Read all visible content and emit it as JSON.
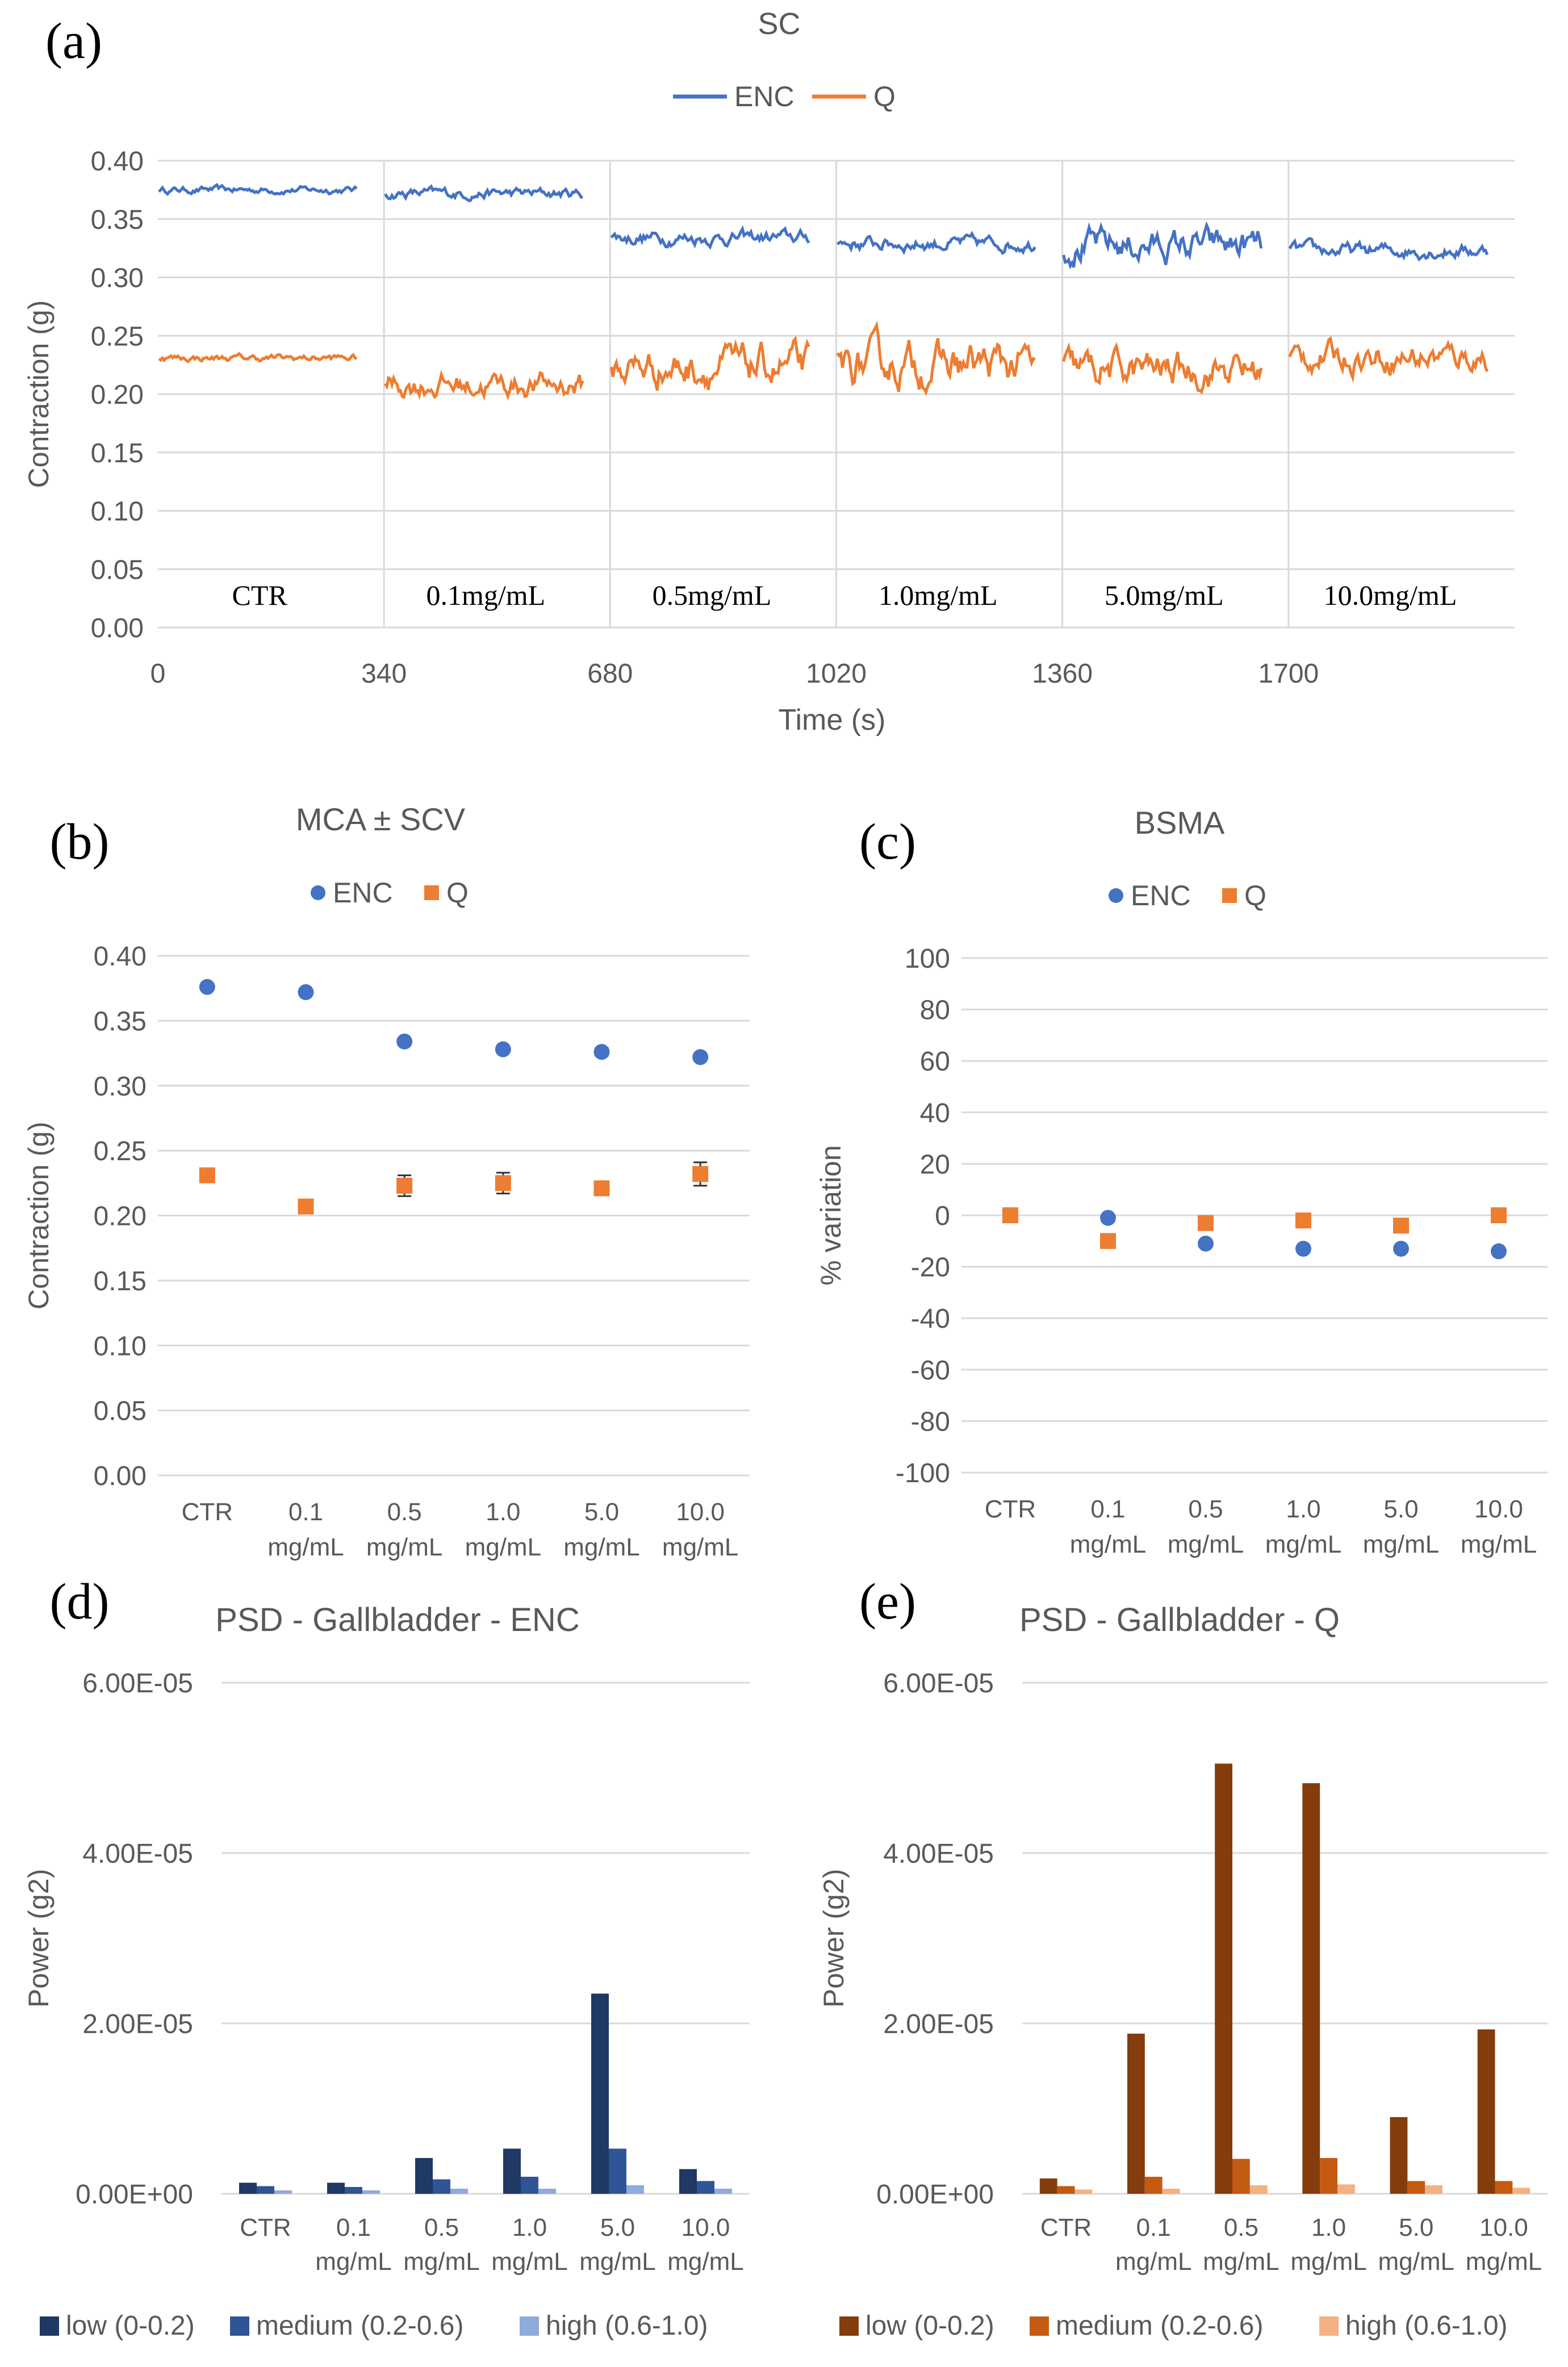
{
  "chart_data": [
    {
      "id": "a",
      "panel_label": "(a)",
      "type": "line",
      "title": "SC",
      "xlabel": "Time (s)",
      "ylabel": "Contraction (g)",
      "ylim": [
        0,
        0.4
      ],
      "yticks": [
        "0.00",
        "0.05",
        "0.10",
        "0.15",
        "0.20",
        "0.25",
        "0.30",
        "0.35",
        "0.40"
      ],
      "xlim": [
        0,
        2040
      ],
      "xticks": [
        "0",
        "340",
        "680",
        "1020",
        "1360",
        "1700"
      ],
      "segments": [
        "CTR",
        "0.1mg/mL",
        "0.5mg/mL",
        "1.0mg/mL",
        "5.0mg/mL",
        "10.0mg/mL"
      ],
      "legend": [
        "ENC",
        "Q"
      ],
      "series": [
        {
          "name": "ENC",
          "color": "#4472C4",
          "segment_means": [
            0.375,
            0.372,
            0.334,
            0.329,
            0.327,
            0.323
          ],
          "segment_noise": [
            0.002,
            0.003,
            0.004,
            0.004,
            0.009,
            0.004
          ]
        },
        {
          "name": "Q",
          "color": "#ED7D31",
          "segment_means": [
            0.231,
            0.208,
            0.223,
            0.225,
            0.221,
            0.232
          ],
          "segment_noise": [
            0.002,
            0.007,
            0.011,
            0.012,
            0.01,
            0.008
          ]
        }
      ]
    },
    {
      "id": "b",
      "panel_label": "(b)",
      "type": "scatter",
      "title": "MCA ± SCV",
      "xlabel": "",
      "ylabel": "Contraction (g)",
      "ylim": [
        0,
        0.4
      ],
      "yticks": [
        "0.00",
        "0.05",
        "0.10",
        "0.15",
        "0.20",
        "0.25",
        "0.30",
        "0.35",
        "0.40"
      ],
      "categories": [
        [
          "CTR",
          ""
        ],
        [
          "0.1",
          "mg/mL"
        ],
        [
          "0.5",
          "mg/mL"
        ],
        [
          "1.0",
          "mg/mL"
        ],
        [
          "5.0",
          "mg/mL"
        ],
        [
          "10.0",
          "mg/mL"
        ]
      ],
      "series": [
        {
          "name": "ENC",
          "color": "#4472C4",
          "marker": "circle",
          "values": [
            0.376,
            0.372,
            0.334,
            0.328,
            0.326,
            0.322
          ],
          "errors": [
            0.001,
            0.001,
            0.001,
            0.001,
            0.003,
            0.001
          ]
        },
        {
          "name": "Q",
          "color": "#ED7D31",
          "marker": "square",
          "values": [
            0.231,
            0.207,
            0.223,
            0.225,
            0.221,
            0.232
          ],
          "errors": [
            0.001,
            0.001,
            0.008,
            0.008,
            0.002,
            0.009
          ]
        }
      ]
    },
    {
      "id": "c",
      "panel_label": "(c)",
      "type": "scatter",
      "title": "BSMA",
      "xlabel": "",
      "ylabel": "% variation",
      "ylim": [
        -100,
        100
      ],
      "yticks": [
        "-100",
        "-80",
        "-60",
        "-40",
        "-20",
        "0",
        "20",
        "40",
        "60",
        "80",
        "100"
      ],
      "categories": [
        [
          "CTR",
          ""
        ],
        [
          "0.1",
          "mg/mL"
        ],
        [
          "0.5",
          "mg/mL"
        ],
        [
          "1.0",
          "mg/mL"
        ],
        [
          "5.0",
          "mg/mL"
        ],
        [
          "10.0",
          "mg/mL"
        ]
      ],
      "series": [
        {
          "name": "ENC",
          "color": "#4472C4",
          "marker": "circle",
          "values": [
            0,
            -1,
            -11,
            -13,
            -13,
            -14
          ]
        },
        {
          "name": "Q",
          "color": "#ED7D31",
          "marker": "square",
          "values": [
            0,
            -10,
            -3,
            -2,
            -4,
            0
          ]
        }
      ]
    },
    {
      "id": "d",
      "panel_label": "(d)",
      "type": "bar",
      "title": "PSD - Gallbladder - ENC",
      "xlabel": "",
      "ylabel": "Power (g2)",
      "ylim": [
        0,
        6e-05
      ],
      "yticks": [
        "0.00E+00",
        "2.00E-05",
        "4.00E-05",
        "6.00E-05"
      ],
      "categories": [
        [
          "CTR",
          ""
        ],
        [
          "0.1",
          "mg/mL"
        ],
        [
          "0.5",
          "mg/mL"
        ],
        [
          "1.0",
          "mg/mL"
        ],
        [
          "5.0",
          "mg/mL"
        ],
        [
          "10.0",
          "mg/mL"
        ]
      ],
      "series": [
        {
          "name": "low (0-0.2)",
          "color": "#1F3864",
          "values": [
            1.3e-06,
            1.3e-06,
            4.2e-06,
            5.3e-06,
            2.35e-05,
            2.9e-06
          ]
        },
        {
          "name": "medium (0.2-0.6)",
          "color": "#2F5597",
          "values": [
            9e-07,
            8e-07,
            1.7e-06,
            2e-06,
            5.3e-06,
            1.5e-06
          ]
        },
        {
          "name": "high (0.6-1.0)",
          "color": "#8FAADC",
          "values": [
            4e-07,
            4e-07,
            6e-07,
            6e-07,
            1e-06,
            6e-07
          ]
        }
      ]
    },
    {
      "id": "e",
      "panel_label": "(e)",
      "type": "bar",
      "title": "PSD - Gallbladder - Q",
      "xlabel": "",
      "ylabel": "Power (g2)",
      "ylim": [
        0,
        6e-05
      ],
      "yticks": [
        "0.00E+00",
        "2.00E-05",
        "4.00E-05",
        "6.00E-05"
      ],
      "categories": [
        [
          "CTR",
          ""
        ],
        [
          "0.1",
          "mg/mL"
        ],
        [
          "0.5",
          "mg/mL"
        ],
        [
          "1.0",
          "mg/mL"
        ],
        [
          "5.0",
          "mg/mL"
        ],
        [
          "10.0",
          "mg/mL"
        ]
      ],
      "series": [
        {
          "name": "low (0-0.2)",
          "color": "#843C0C",
          "values": [
            1.8e-06,
            1.88e-05,
            5.05e-05,
            4.82e-05,
            9e-06,
            1.93e-05
          ]
        },
        {
          "name": "medium (0.2-0.6)",
          "color": "#C55A11",
          "values": [
            9e-07,
            2e-06,
            4.1e-06,
            4.2e-06,
            1.5e-06,
            1.5e-06
          ]
        },
        {
          "name": "high (0.6-1.0)",
          "color": "#F4B183",
          "values": [
            5e-07,
            6e-07,
            1e-06,
            1.1e-06,
            1e-06,
            7e-07
          ]
        }
      ]
    }
  ]
}
